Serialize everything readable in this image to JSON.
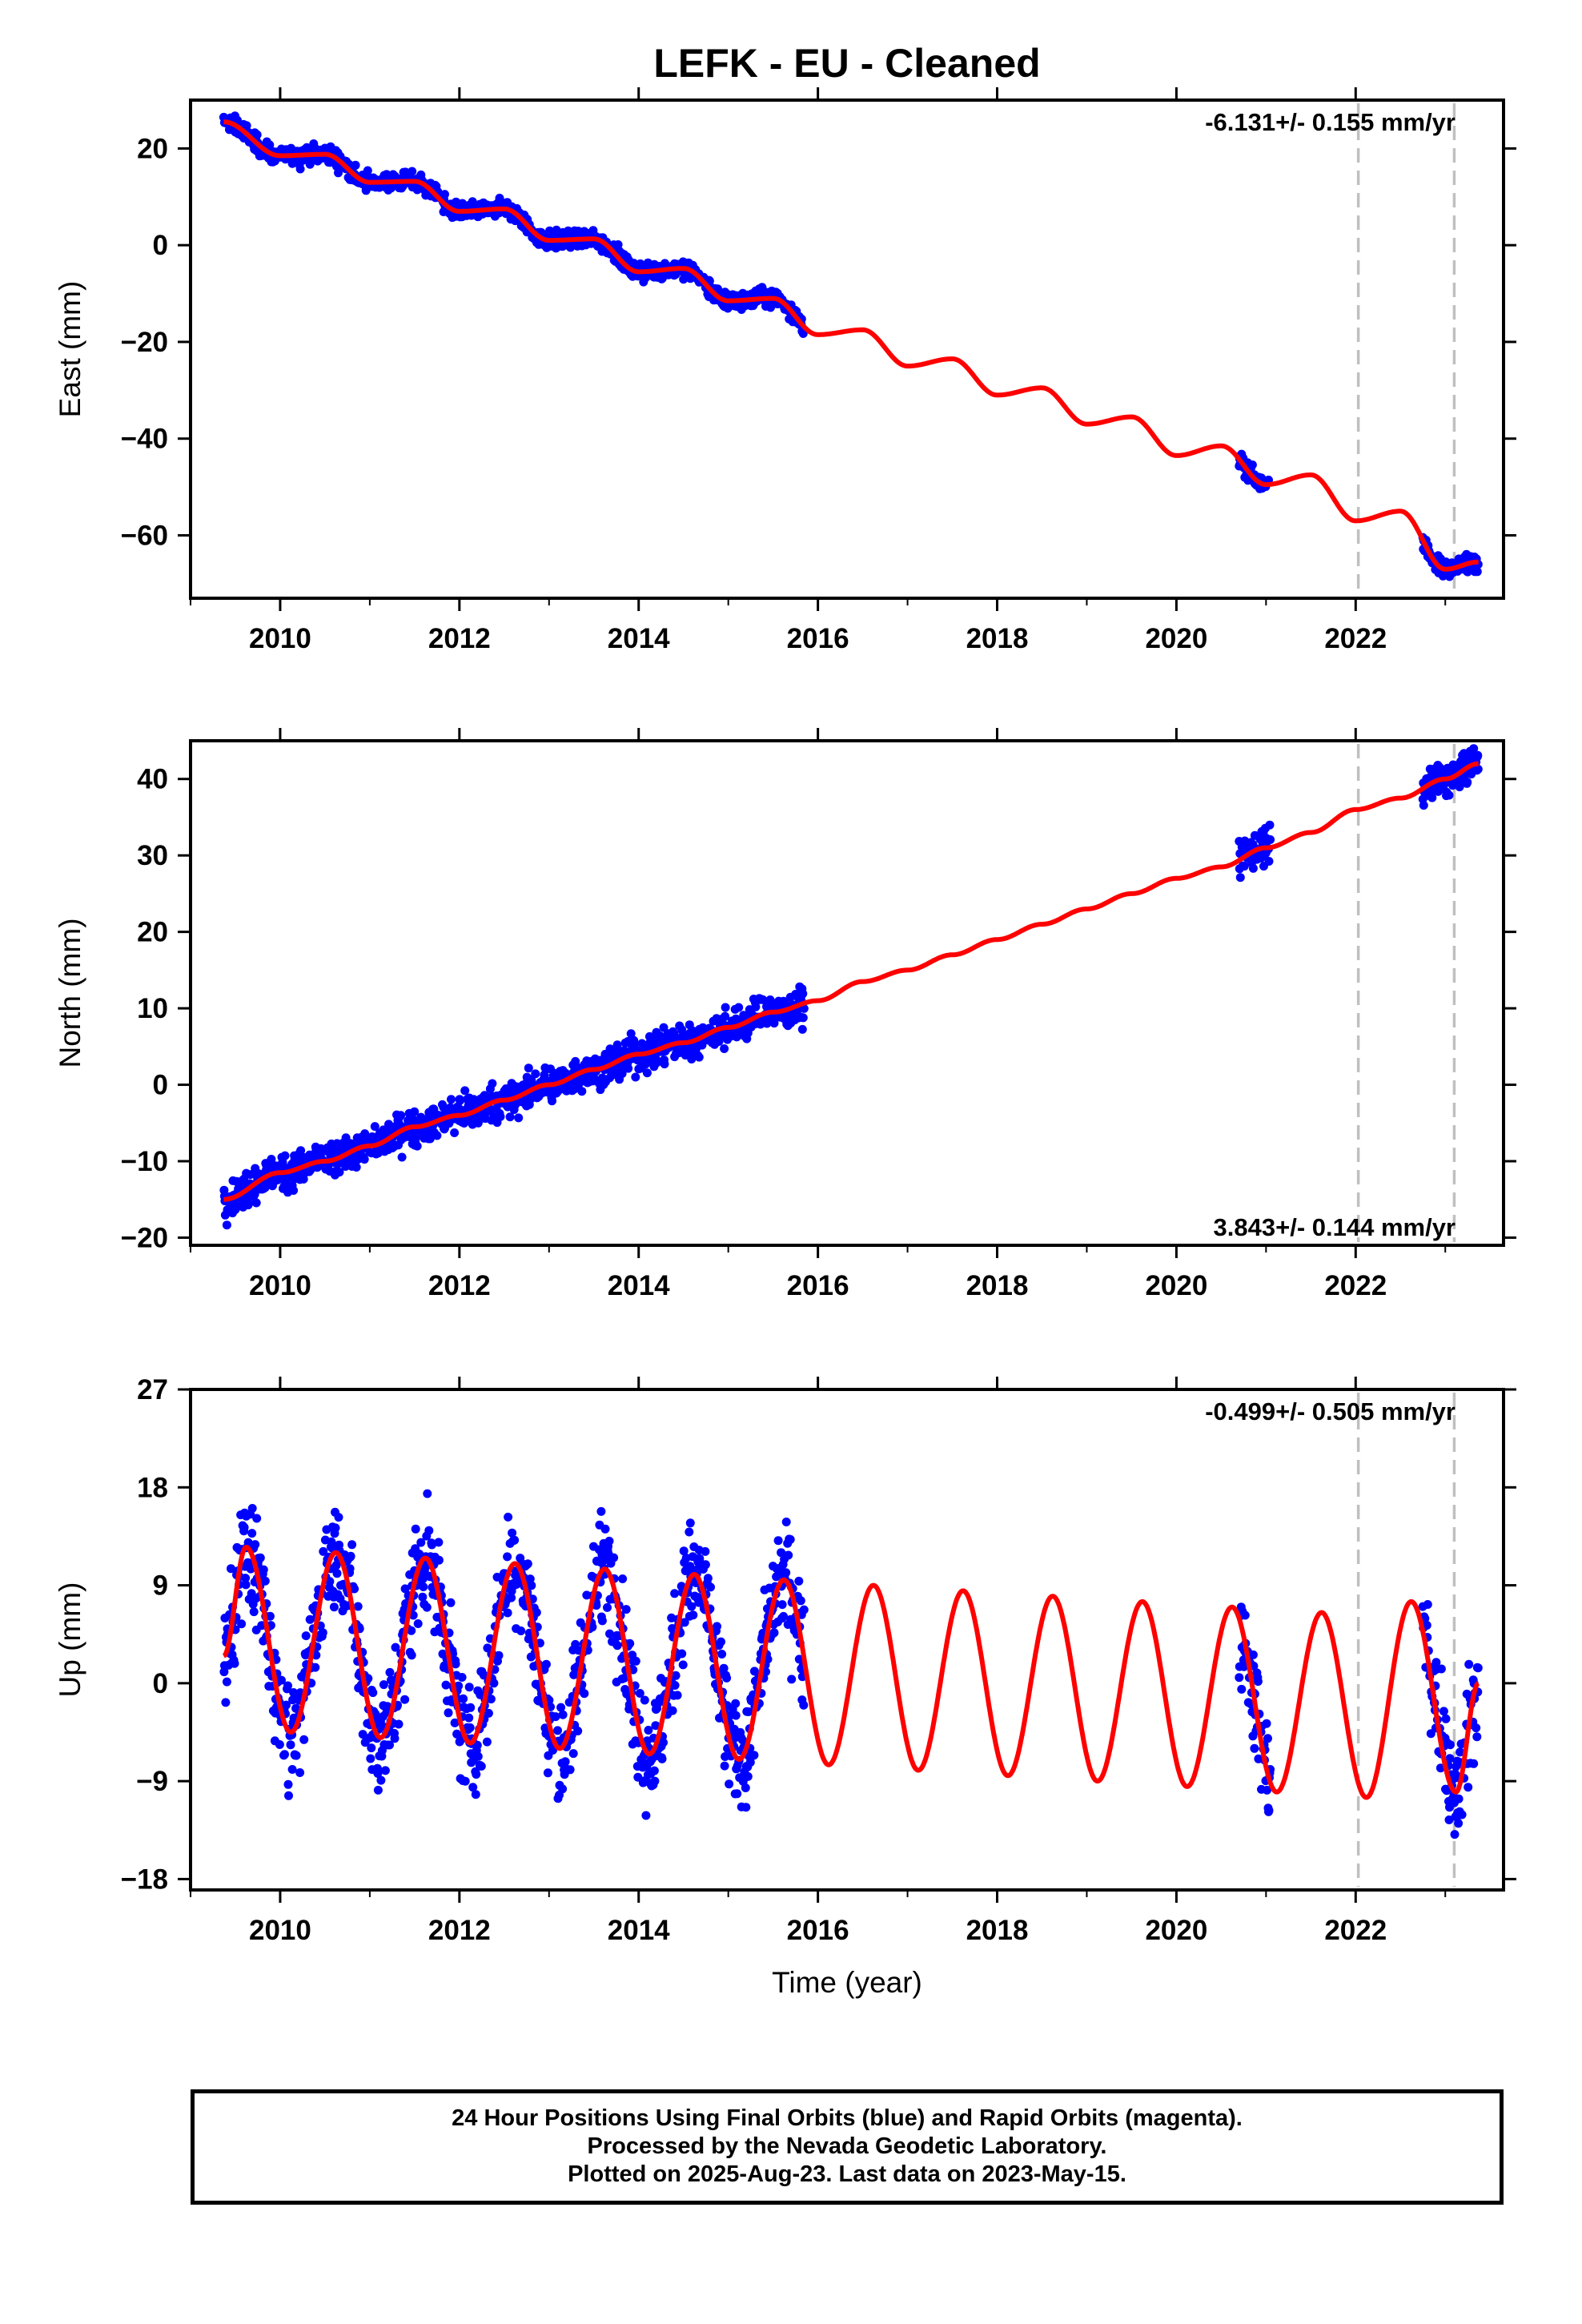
{
  "chart_data": {
    "type": "scatter",
    "title": "LEFK  - EU - Cleaned",
    "xlabel": "Time (year)",
    "xlim": [
      2009.0,
      2023.65
    ],
    "xticks": [
      "2010",
      "2012",
      "2014",
      "2016",
      "2018",
      "2020",
      "2022"
    ],
    "observation_color": "#0000ff",
    "model_color": "#ff0000",
    "reference_line_color": "#c0c0c0",
    "reference_lines": [
      2022.03,
      2023.1
    ],
    "data_segments": [
      [
        2009.37,
        2015.85
      ],
      [
        2020.7,
        2021.05
      ],
      [
        2022.75,
        2023.37
      ]
    ],
    "panels": [
      {
        "ylabel": "East (mm)",
        "ylim": [
          -73,
          30
        ],
        "yticks": [
          "20",
          "0",
          "−20",
          "−40",
          "−60"
        ],
        "ytick_values": [
          20,
          0,
          -20,
          -40,
          -60
        ],
        "rate_text": "-6.131+/- 0.155 mm/yr",
        "rate_position": "top-right",
        "series": [
          {
            "name": "",
            "kind": "model",
            "x": [
              2009.37,
              2010.0,
              2010.5,
              2011.0,
              2011.5,
              2012.0,
              2012.5,
              2013.0,
              2013.5,
              2014.0,
              2014.5,
              2015.0,
              2015.5,
              2016.0,
              2016.5,
              2017.0,
              2017.5,
              2018.0,
              2018.5,
              2019.0,
              2019.5,
              2020.0,
              2020.5,
              2021.0,
              2021.5,
              2022.0,
              2022.5,
              2023.0,
              2023.37
            ],
            "y": [
              25.5,
              18.5,
              18.8,
              13.0,
              13.2,
              7.0,
              7.5,
              1.0,
              1.3,
              -5.5,
              -4.8,
              -11.5,
              -11.0,
              -18.5,
              -17.5,
              -25.0,
              -23.5,
              -31.0,
              -29.5,
              -37.0,
              -35.5,
              -43.5,
              -41.5,
              -49.5,
              -47.5,
              -57.0,
              -55.0,
              -67.0,
              -65.5
            ]
          },
          {
            "name": "",
            "kind": "observations",
            "noise": 1.3
          }
        ]
      },
      {
        "ylabel": "North (mm)",
        "ylim": [
          -21,
          45
        ],
        "yticks": [
          "40",
          "30",
          "20",
          "10",
          "0",
          "−10",
          "−20"
        ],
        "ytick_values": [
          40,
          30,
          20,
          10,
          0,
          -10,
          -20
        ],
        "rate_text": "3.843+/- 0.144 mm/yr",
        "rate_position": "bottom-right",
        "series": [
          {
            "name": "",
            "kind": "model",
            "x": [
              2009.37,
              2010.0,
              2010.5,
              2011.0,
              2011.5,
              2012.0,
              2012.5,
              2013.0,
              2013.5,
              2014.0,
              2014.5,
              2015.0,
              2015.5,
              2016.0,
              2016.5,
              2017.0,
              2017.5,
              2018.0,
              2018.5,
              2019.0,
              2019.5,
              2020.0,
              2020.5,
              2021.0,
              2021.5,
              2022.0,
              2022.5,
              2023.0,
              2023.37
            ],
            "y": [
              -15.0,
              -11.5,
              -10.0,
              -8.0,
              -5.5,
              -4.0,
              -2.0,
              0.0,
              2.0,
              4.0,
              5.5,
              7.5,
              9.5,
              11.0,
              13.5,
              15.0,
              17.0,
              19.0,
              21.0,
              23.0,
              25.0,
              27.0,
              28.5,
              31.0,
              33.0,
              36.0,
              37.5,
              40.0,
              42.0
            ]
          },
          {
            "name": "",
            "kind": "observations",
            "noise": 1.6
          }
        ]
      },
      {
        "ylabel": "Up (mm)",
        "ylim": [
          -19,
          27
        ],
        "yticks": [
          "27",
          "18",
          "9",
          "0",
          "−9",
          "−18"
        ],
        "ytick_values": [
          27,
          18,
          9,
          0,
          -9,
          -18
        ],
        "rate_text": "-0.499+/- 0.505 mm/yr",
        "rate_position": "top-right",
        "series": [
          {
            "name": "",
            "kind": "model",
            "x": [
              2009.37,
              2009.62,
              2010.12,
              2010.62,
              2011.12,
              2011.62,
              2012.12,
              2012.62,
              2013.12,
              2013.62,
              2014.12,
              2014.62,
              2015.12,
              2015.62,
              2016.12,
              2016.62,
              2017.12,
              2017.62,
              2018.12,
              2018.62,
              2019.12,
              2019.62,
              2020.12,
              2020.62,
              2021.12,
              2021.62,
              2022.12,
              2022.62,
              2023.12,
              2023.37
            ],
            "y": [
              2.5,
              12.5,
              -4.5,
              12.0,
              -5.0,
              11.5,
              -5.5,
              11.0,
              -6.0,
              10.5,
              -6.5,
              10.0,
              -7.0,
              9.5,
              -7.5,
              9.0,
              -8.0,
              8.5,
              -8.5,
              8.0,
              -9.0,
              7.5,
              -9.5,
              7.0,
              -10.0,
              6.5,
              -10.5,
              7.5,
              -10.0,
              0.0
            ]
          },
          {
            "name": "",
            "kind": "observations",
            "noise": 3.6
          }
        ]
      }
    ],
    "notes": [
      "24 Hour Positions Using Final Orbits (blue) and Rapid Orbits (magenta).",
      "Processed by the Nevada Geodetic Laboratory.",
      "Plotted on 2025-Aug-23. Last data on 2023-May-15."
    ]
  }
}
